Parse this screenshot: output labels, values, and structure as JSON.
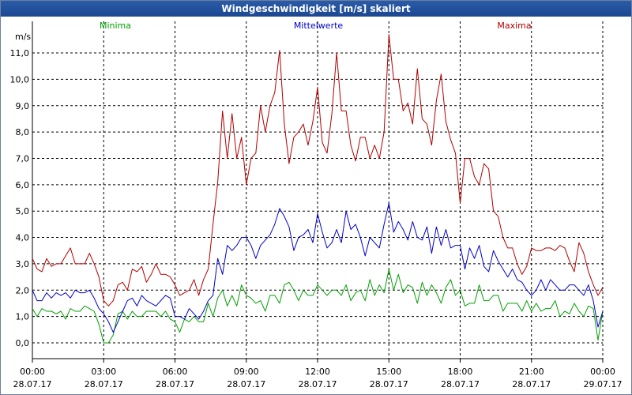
{
  "window": {
    "title": "Windgeschwindigkeit [m/s] skaliert"
  },
  "chart_data": {
    "type": "line",
    "title": "Windgeschwindigkeit [m/s] skaliert",
    "ylabel": "m/s",
    "xlabel": "",
    "ylim": [
      -0.6,
      12.2
    ],
    "xlim": [
      0,
      24
    ],
    "grid": true,
    "y_ticks": [
      0,
      1,
      2,
      3,
      4,
      5,
      6,
      7,
      8,
      9,
      10,
      11
    ],
    "y_tick_labels": [
      "0,0",
      "1,0",
      "2,0",
      "3,0",
      "4,0",
      "5,0",
      "6,0",
      "7,0",
      "8,0",
      "9,0",
      "10,0",
      "11,0"
    ],
    "x_ticks": [
      0,
      3,
      6,
      9,
      12,
      15,
      18,
      21,
      24
    ],
    "x_tick_labels": [
      [
        "00:00",
        "28.07.17"
      ],
      [
        "03:00",
        "28.07.17"
      ],
      [
        "06:00",
        "28.07.17"
      ],
      [
        "09:00",
        "28.07.17"
      ],
      [
        "12:00",
        "28.07.17"
      ],
      [
        "15:00",
        "28.07.17"
      ],
      [
        "18:00",
        "28.07.17"
      ],
      [
        "21:00",
        "28.07.17"
      ],
      [
        "00:00",
        "29.07.17"
      ]
    ],
    "series": [
      {
        "name": "Minima",
        "color": "#00a000",
        "x": [
          0,
          0.2,
          0.4,
          0.6,
          0.8,
          1,
          1.2,
          1.4,
          1.6,
          1.8,
          2,
          2.2,
          2.4,
          2.6,
          2.8,
          3,
          3.2,
          3.4,
          3.6,
          3.8,
          4,
          4.2,
          4.4,
          4.6,
          4.8,
          5,
          5.2,
          5.4,
          5.6,
          5.8,
          6,
          6.2,
          6.4,
          6.6,
          6.8,
          7,
          7.2,
          7.4,
          7.6,
          7.8,
          8,
          8.2,
          8.4,
          8.6,
          8.8,
          9,
          9.2,
          9.4,
          9.6,
          9.8,
          10,
          10.2,
          10.4,
          10.6,
          10.8,
          11,
          11.2,
          11.4,
          11.6,
          11.8,
          12,
          12.2,
          12.4,
          12.6,
          12.8,
          13,
          13.2,
          13.4,
          13.6,
          13.8,
          14,
          14.2,
          14.4,
          14.6,
          14.8,
          15,
          15.2,
          15.4,
          15.6,
          15.8,
          16,
          16.2,
          16.4,
          16.6,
          16.8,
          17,
          17.2,
          17.4,
          17.6,
          17.8,
          18,
          18.2,
          18.4,
          18.6,
          18.8,
          19,
          19.2,
          19.4,
          19.6,
          19.8,
          20,
          20.2,
          20.4,
          20.6,
          20.8,
          21,
          21.2,
          21.4,
          21.6,
          21.8,
          22,
          22.2,
          22.4,
          22.6,
          22.8,
          23,
          23.2,
          23.4,
          23.6,
          23.8,
          24
        ],
        "values": [
          1.3,
          1,
          1.3,
          1.2,
          1.2,
          1.1,
          1.2,
          0.9,
          1.3,
          1.2,
          1.2,
          1.4,
          1.3,
          1.2,
          0.7,
          0,
          0,
          0.3,
          1.1,
          1.2,
          0.9,
          1.2,
          1.0,
          1.0,
          1.2,
          1.2,
          1.2,
          1.0,
          1.2,
          0.9,
          0.8,
          0.4,
          0.9,
          0.8,
          1.0,
          0.8,
          0.8,
          1.5,
          1.0,
          1.7,
          2.0,
          1.4,
          1.8,
          1.4,
          2.2,
          1.8,
          1.7,
          1.5,
          1.6,
          1.2,
          1.8,
          1.8,
          1.5,
          2.2,
          2.3,
          2.0,
          1.6,
          2.0,
          1.8,
          1.8,
          2.2,
          2.0,
          1.8,
          2.0,
          2.0,
          1.8,
          2.2,
          1.6,
          1.9,
          2.0,
          1.6,
          2.4,
          1.8,
          2.2,
          1.9,
          2.8,
          2.0,
          2.6,
          1.9,
          2.2,
          2.1,
          1.5,
          2.3,
          1.8,
          2.2,
          1.9,
          1.5,
          2.1,
          2.4,
          1.8,
          2.0,
          1.4,
          1.5,
          1.5,
          2.2,
          1.6,
          1.6,
          1.8,
          1.8,
          1.2,
          1.5,
          1.5,
          1.5,
          1.2,
          1.6,
          1.2,
          1.5,
          1.2,
          1.3,
          1.3,
          1.6,
          1.0,
          1.2,
          1.1,
          1.5,
          1.2,
          1.0,
          1.4,
          1.3,
          0.1,
          1.2
        ]
      },
      {
        "name": "Mittelwerte",
        "color": "#0000c8",
        "x": [
          0,
          0.2,
          0.4,
          0.6,
          0.8,
          1,
          1.2,
          1.4,
          1.6,
          1.8,
          2,
          2.2,
          2.4,
          2.6,
          2.8,
          3,
          3.2,
          3.4,
          3.6,
          3.8,
          4,
          4.2,
          4.4,
          4.6,
          4.8,
          5,
          5.2,
          5.4,
          5.6,
          5.8,
          6,
          6.2,
          6.4,
          6.6,
          6.8,
          7,
          7.2,
          7.4,
          7.6,
          7.8,
          8,
          8.2,
          8.4,
          8.6,
          8.8,
          9,
          9.2,
          9.4,
          9.6,
          9.8,
          10,
          10.2,
          10.4,
          10.6,
          10.8,
          11,
          11.2,
          11.4,
          11.6,
          11.8,
          12,
          12.2,
          12.4,
          12.6,
          12.8,
          13,
          13.2,
          13.4,
          13.6,
          13.8,
          14,
          14.2,
          14.4,
          14.6,
          14.8,
          15,
          15.2,
          15.4,
          15.6,
          15.8,
          16,
          16.2,
          16.4,
          16.6,
          16.8,
          17,
          17.2,
          17.4,
          17.6,
          17.8,
          18,
          18.2,
          18.4,
          18.6,
          18.8,
          19,
          19.2,
          19.4,
          19.6,
          19.8,
          20,
          20.2,
          20.4,
          20.6,
          20.8,
          21,
          21.2,
          21.4,
          21.6,
          21.8,
          22,
          22.2,
          22.4,
          22.6,
          22.8,
          23,
          23.2,
          23.4,
          23.6,
          23.8,
          24
        ],
        "values": [
          2.0,
          1.6,
          1.6,
          1.9,
          1.7,
          1.9,
          1.8,
          1.9,
          1.7,
          2.0,
          1.9,
          1.9,
          2.0,
          1.7,
          1.3,
          1.1,
          0.8,
          0.4,
          0.8,
          1.2,
          1.6,
          1.7,
          1.4,
          1.8,
          1.6,
          1.5,
          1.4,
          1.6,
          1.8,
          1.7,
          1.0,
          1.0,
          0.9,
          1.3,
          1.1,
          0.9,
          1.2,
          1.6,
          1.8,
          3.2,
          2.6,
          3.7,
          3.5,
          3.7,
          4.0,
          4.0,
          3.7,
          3.2,
          3.7,
          3.9,
          4.1,
          4.5,
          5.1,
          4.8,
          4.4,
          3.5,
          4.0,
          4.1,
          4.3,
          3.8,
          4.9,
          4.2,
          3.6,
          3.8,
          4.3,
          3.8,
          5.0,
          4.3,
          4.5,
          4.0,
          3.3,
          4.0,
          3.8,
          3.6,
          4.5,
          5.3,
          4.2,
          4.6,
          4.3,
          3.9,
          4.6,
          4.0,
          3.9,
          4.4,
          3.4,
          4.4,
          3.7,
          4.3,
          3.6,
          3.7,
          3.7,
          2.8,
          3.6,
          3.2,
          3.7,
          2.9,
          2.7,
          3.5,
          3.1,
          2.8,
          2.5,
          2.8,
          2.4,
          2.3,
          2.0,
          1.8,
          2.0,
          2.4,
          2.0,
          2.4,
          2.2,
          2.0,
          2.0,
          2.2,
          2.2,
          2.0,
          1.8,
          2.2,
          1.6,
          0.6,
          1.2
        ]
      },
      {
        "name": "Maxima",
        "color": "#b00000",
        "x": [
          0,
          0.2,
          0.4,
          0.6,
          0.8,
          1,
          1.2,
          1.4,
          1.6,
          1.8,
          2,
          2.2,
          2.4,
          2.6,
          2.8,
          3,
          3.2,
          3.4,
          3.6,
          3.8,
          4,
          4.2,
          4.4,
          4.6,
          4.8,
          5,
          5.2,
          5.4,
          5.6,
          5.8,
          6,
          6.2,
          6.4,
          6.6,
          6.8,
          7,
          7.2,
          7.4,
          7.6,
          7.8,
          8,
          8.2,
          8.4,
          8.6,
          8.8,
          9,
          9.2,
          9.4,
          9.6,
          9.8,
          10,
          10.2,
          10.4,
          10.6,
          10.8,
          11,
          11.2,
          11.4,
          11.6,
          11.8,
          12,
          12.2,
          12.4,
          12.6,
          12.8,
          13,
          13.2,
          13.4,
          13.6,
          13.8,
          14,
          14.2,
          14.4,
          14.6,
          14.8,
          15,
          15.2,
          15.4,
          15.6,
          15.8,
          16,
          16.2,
          16.4,
          16.6,
          16.8,
          17,
          17.2,
          17.4,
          17.6,
          17.8,
          18,
          18.2,
          18.4,
          18.6,
          18.8,
          19,
          19.2,
          19.4,
          19.6,
          19.8,
          20,
          20.2,
          20.4,
          20.6,
          20.8,
          21,
          21.2,
          21.4,
          21.6,
          21.8,
          22,
          22.2,
          22.4,
          22.6,
          22.8,
          23,
          23.2,
          23.4,
          23.6,
          23.8,
          24
        ],
        "values": [
          3.2,
          2.8,
          2.7,
          3.2,
          2.9,
          3.0,
          3.0,
          3.3,
          3.6,
          3.0,
          3.0,
          3.0,
          3.4,
          3.0,
          2.5,
          1.6,
          1.4,
          1.6,
          2.2,
          2.3,
          2.0,
          2.8,
          2.7,
          2.9,
          2.3,
          2.6,
          3.0,
          2.6,
          2.6,
          2.5,
          2.2,
          1.8,
          1.9,
          2.0,
          2.4,
          1.8,
          2.4,
          2.8,
          4.5,
          6.1,
          8.8,
          7.0,
          8.7,
          7.0,
          7.8,
          6.0,
          7.0,
          7.2,
          9.0,
          8.0,
          9.0,
          9.5,
          11.1,
          8.3,
          6.8,
          7.8,
          8.0,
          8.3,
          7.5,
          8.4,
          9.7,
          7.6,
          7.2,
          8.7,
          11.0,
          8.8,
          8.8,
          7.5,
          6.9,
          7.8,
          7.8,
          7.0,
          7.5,
          7.0,
          8.0,
          11.7,
          10.0,
          10.0,
          8.8,
          9.1,
          8.3,
          10.4,
          8.5,
          8.3,
          7.5,
          9.2,
          10.2,
          8.4,
          7.7,
          7.2,
          5.3,
          7.0,
          7.0,
          6.3,
          6.0,
          6.8,
          6.6,
          5.0,
          4.8,
          4.0,
          3.6,
          3.6,
          3.0,
          2.6,
          2.9,
          3.6,
          3.5,
          3.5,
          3.6,
          3.6,
          3.5,
          3.7,
          3.6,
          3.1,
          2.7,
          3.8,
          3.4,
          2.7,
          2.2,
          1.8,
          2.1
        ]
      }
    ]
  }
}
